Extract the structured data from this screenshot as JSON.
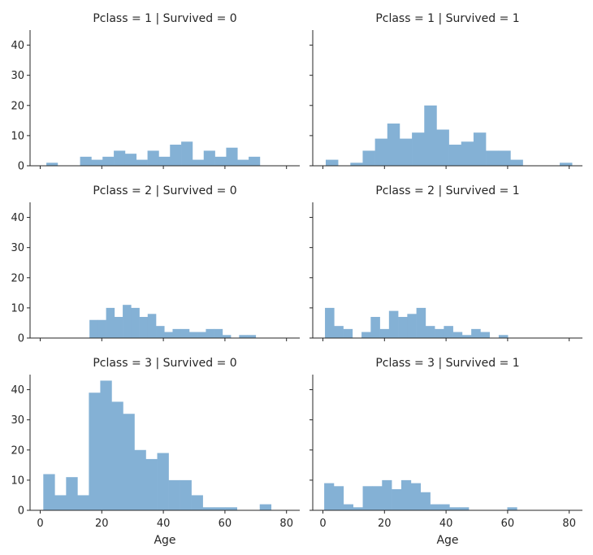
{
  "chart_data": [
    {
      "type": "bar",
      "title": "Pclass = 1 | Survived = 0",
      "xlabel": "",
      "ylabel": "",
      "xlim": [
        -3.3,
        84.3
      ],
      "ylim": [
        0,
        45
      ],
      "xticks": [
        0,
        20,
        40,
        60,
        80
      ],
      "yticks": [
        0,
        10,
        20,
        30,
        40
      ],
      "show_xtick_labels": false,
      "show_ytick_labels": true,
      "grid": false,
      "bin_edges": [
        2,
        5.65,
        9.3,
        12.95,
        16.6,
        20.25,
        23.9,
        27.55,
        31.2,
        34.85,
        38.5,
        42.15,
        45.8,
        49.45,
        53.1,
        56.75,
        60.4,
        64.05,
        67.7,
        71.35
      ],
      "values": [
        1,
        0,
        0,
        3,
        2,
        3,
        5,
        4,
        2,
        5,
        3,
        7,
        8,
        2,
        5,
        3,
        6,
        2,
        3
      ]
    },
    {
      "type": "bar",
      "title": "Pclass = 1 | Survived = 1",
      "xlabel": "",
      "ylabel": "",
      "xlim": [
        -3.3,
        84.3
      ],
      "ylim": [
        0,
        45
      ],
      "xticks": [
        0,
        20,
        40,
        60,
        80
      ],
      "yticks": [
        0,
        10,
        20,
        30,
        40
      ],
      "show_xtick_labels": false,
      "show_ytick_labels": false,
      "grid": false,
      "bin_edges": [
        0.92,
        4.92,
        8.92,
        12.92,
        16.92,
        20.92,
        24.92,
        28.92,
        32.92,
        36.92,
        40.92,
        44.92,
        48.92,
        52.92,
        56.92,
        60.92,
        64.92,
        68.92,
        72.92,
        76.92,
        80.92
      ],
      "values": [
        2,
        0,
        1,
        5,
        9,
        14,
        9,
        11,
        20,
        12,
        7,
        8,
        11,
        5,
        5,
        2,
        0,
        0,
        0,
        1
      ]
    },
    {
      "type": "bar",
      "title": "Pclass = 2 | Survived = 0",
      "xlabel": "",
      "ylabel": "",
      "xlim": [
        -3.3,
        84.3
      ],
      "ylim": [
        0,
        45
      ],
      "xticks": [
        0,
        20,
        40,
        60,
        80
      ],
      "yticks": [
        0,
        10,
        20,
        30,
        40
      ],
      "show_xtick_labels": false,
      "show_ytick_labels": true,
      "grid": false,
      "bin_edges": [
        16,
        18.7,
        21.4,
        24.1,
        26.8,
        29.5,
        32.2,
        34.9,
        37.6,
        40.3,
        43,
        45.7,
        48.4,
        51.1,
        53.8,
        56.5,
        59.2,
        61.9,
        64.6,
        67.3,
        70
      ],
      "values": [
        6,
        6,
        10,
        7,
        11,
        10,
        7,
        8,
        4,
        2,
        3,
        3,
        2,
        2,
        3,
        3,
        1,
        0,
        1,
        1
      ]
    },
    {
      "type": "bar",
      "title": "Pclass = 2 | Survived = 1",
      "xlabel": "",
      "ylabel": "",
      "xlim": [
        -3.3,
        84.3
      ],
      "ylim": [
        0,
        45
      ],
      "xticks": [
        0,
        20,
        40,
        60,
        80
      ],
      "yticks": [
        0,
        10,
        20,
        30,
        40
      ],
      "show_xtick_labels": false,
      "show_ytick_labels": false,
      "grid": false,
      "bin_edges": [
        0.67,
        3.64,
        6.61,
        9.58,
        12.55,
        15.52,
        18.49,
        21.46,
        24.43,
        27.4,
        30.37,
        33.34,
        36.31,
        39.28,
        42.25,
        45.22,
        48.19,
        51.16,
        54.13,
        57.1,
        60.07,
        63.04
      ],
      "values": [
        10,
        4,
        3,
        0,
        2,
        7,
        3,
        9,
        7,
        8,
        10,
        4,
        3,
        4,
        2,
        1,
        3,
        2,
        0,
        1,
        0
      ]
    },
    {
      "type": "bar",
      "title": "Pclass = 3 | Survived = 0",
      "xlabel": "Age",
      "ylabel": "",
      "xlim": [
        -3.3,
        84.3
      ],
      "ylim": [
        0,
        45
      ],
      "xticks": [
        0,
        20,
        40,
        60,
        80
      ],
      "yticks": [
        0,
        10,
        20,
        30,
        40
      ],
      "show_xtick_labels": true,
      "show_ytick_labels": true,
      "grid": false,
      "bin_edges": [
        1,
        4.7,
        8.4,
        12.1,
        15.8,
        19.5,
        23.2,
        26.9,
        30.6,
        34.3,
        38,
        41.7,
        45.4,
        49.1,
        52.8,
        56.5,
        60.2,
        63.9,
        67.6,
        71.3,
        75
      ],
      "values": [
        12,
        5,
        11,
        5,
        39,
        43,
        36,
        32,
        20,
        17,
        19,
        10,
        10,
        5,
        1,
        1,
        1,
        0,
        0,
        2
      ]
    },
    {
      "type": "bar",
      "title": "Pclass = 3 | Survived = 1",
      "xlabel": "Age",
      "ylabel": "",
      "xlim": [
        -3.3,
        84.3
      ],
      "ylim": [
        0,
        45
      ],
      "xticks": [
        0,
        20,
        40,
        60,
        80
      ],
      "yticks": [
        0,
        10,
        20,
        30,
        40
      ],
      "show_xtick_labels": true,
      "show_ytick_labels": false,
      "grid": false,
      "bin_edges": [
        0.42,
        3.55,
        6.68,
        9.81,
        12.94,
        16.07,
        19.2,
        22.33,
        25.46,
        28.59,
        31.72,
        34.85,
        37.98,
        41.11,
        44.24,
        47.37,
        50.5,
        53.63,
        56.76,
        59.89,
        63.02
      ],
      "values": [
        9,
        8,
        2,
        1,
        8,
        8,
        10,
        7,
        10,
        9,
        6,
        2,
        2,
        1,
        1,
        0,
        0,
        0,
        0,
        1
      ]
    }
  ]
}
